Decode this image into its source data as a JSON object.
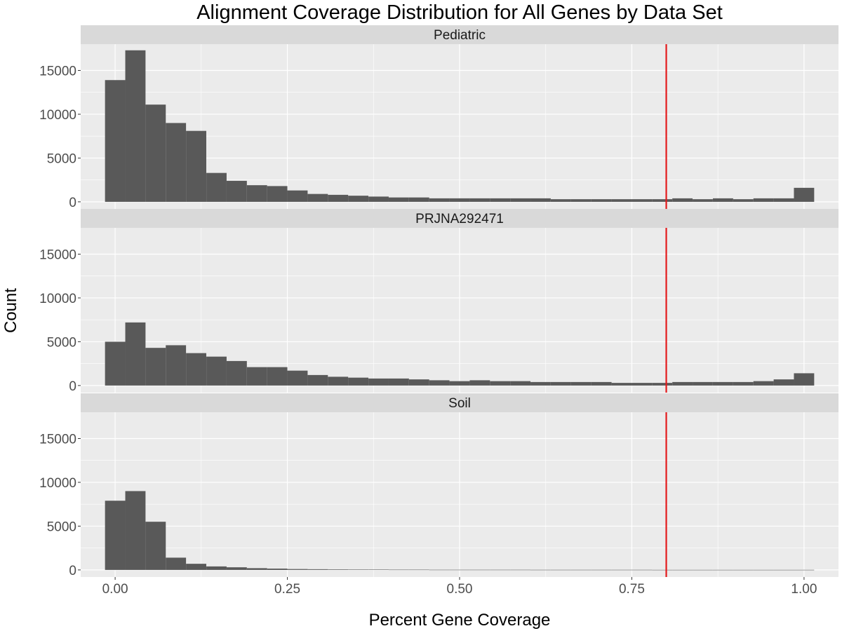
{
  "chart_data": {
    "type": "bar",
    "title": "Alignment Coverage Distribution for All Genes by Data Set",
    "xlabel": "Percent Gene Coverage",
    "ylabel": "Count",
    "xlim": [
      -0.05,
      1.05
    ],
    "ylim": [
      0,
      18000
    ],
    "x_ticks": [
      0,
      0.25,
      0.5,
      0.75,
      1.0
    ],
    "x_tick_labels": [
      "0.00",
      "0.25",
      "0.50",
      "0.75",
      "1.00"
    ],
    "y_ticks": [
      0,
      5000,
      10000,
      15000
    ],
    "y_tick_labels": [
      "0",
      "5000",
      "10000",
      "15000"
    ],
    "bin_width": 0.0294,
    "bin_centers": [
      0.0,
      0.0294,
      0.0588,
      0.0882,
      0.1176,
      0.1471,
      0.1765,
      0.2059,
      0.2353,
      0.2647,
      0.2941,
      0.3235,
      0.3529,
      0.3824,
      0.4118,
      0.4412,
      0.4706,
      0.5,
      0.5294,
      0.5588,
      0.5882,
      0.6176,
      0.6471,
      0.6765,
      0.7059,
      0.7353,
      0.7647,
      0.7941,
      0.8235,
      0.8529,
      0.8824,
      0.9118,
      0.9412,
      0.9706,
      1.0
    ],
    "grid": true,
    "reference_line": {
      "x": 0.8,
      "color": "#e41a1c"
    },
    "bar_color": "#595959",
    "panel_background": "#ebebeb",
    "strip_background": "#d9d9d9",
    "gridline_color": "#ffffff",
    "panels": [
      {
        "name": "Pediatric",
        "values": [
          13900,
          17300,
          11100,
          9000,
          8100,
          3300,
          2400,
          1900,
          1800,
          1300,
          900,
          800,
          700,
          600,
          500,
          500,
          400,
          400,
          400,
          400,
          400,
          400,
          300,
          300,
          300,
          300,
          300,
          300,
          400,
          300,
          400,
          300,
          400,
          400,
          1600
        ]
      },
      {
        "name": "PRJNA292471",
        "values": [
          5000,
          7200,
          4300,
          4600,
          3700,
          3300,
          2800,
          2100,
          2100,
          1700,
          1200,
          1000,
          900,
          800,
          800,
          700,
          600,
          500,
          600,
          500,
          500,
          400,
          400,
          400,
          400,
          300,
          300,
          300,
          400,
          400,
          400,
          400,
          500,
          700,
          1400
        ]
      },
      {
        "name": "Soil",
        "values": [
          7900,
          9000,
          5500,
          1400,
          700,
          400,
          300,
          200,
          150,
          100,
          80,
          60,
          50,
          40,
          30,
          30,
          20,
          20,
          20,
          20,
          20,
          15,
          15,
          15,
          15,
          15,
          15,
          10,
          10,
          10,
          10,
          10,
          10,
          10,
          10
        ]
      }
    ]
  }
}
